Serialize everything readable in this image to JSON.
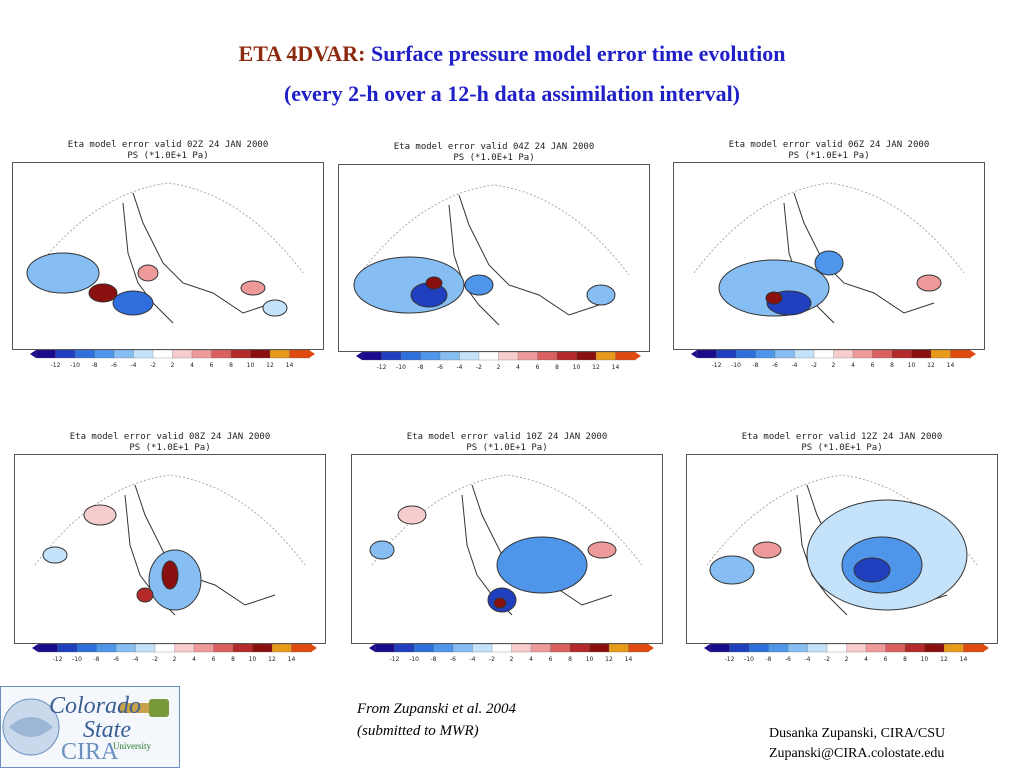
{
  "title": {
    "prefix": "ETA 4DVAR:",
    "rest": "Surface pressure model error time evolution",
    "line2": "(every 2-h over a 12-h data assimilation interval)"
  },
  "panels": [
    {
      "title": "Eta model error valid 02Z 24 JAN 2000",
      "subtitle": "PS (*1.0E+1 Pa)"
    },
    {
      "title": "Eta model error valid 04Z 24 JAN 2000",
      "subtitle": "PS (*1.0E+1 Pa)"
    },
    {
      "title": "Eta model error valid 06Z 24 JAN 2000",
      "subtitle": "PS (*1.0E+1 Pa)"
    },
    {
      "title": "Eta model error valid 08Z 24 JAN 2000",
      "subtitle": "PS (*1.0E+1 Pa)"
    },
    {
      "title": "Eta model error valid 10Z 24 JAN 2000",
      "subtitle": "PS (*1.0E+1 Pa)"
    },
    {
      "title": "Eta model error valid 12Z 24 JAN 2000",
      "subtitle": "PS (*1.0E+1 Pa)"
    }
  ],
  "colorbar": {
    "ticks": [
      "-12",
      "-10",
      "-8",
      "-6",
      "-4",
      "-2",
      "2",
      "4",
      "6",
      "8",
      "10",
      "12",
      "14"
    ],
    "colors": [
      "#1a0a8c",
      "#1f3fbf",
      "#2f6fdd",
      "#4f95ea",
      "#86bdf3",
      "#c4e2fa",
      "#ffffff",
      "#f6cccc",
      "#ee9a9a",
      "#db6060",
      "#b42a2a",
      "#8a0f0f",
      "#e89a1a",
      "#e04a10"
    ]
  },
  "citation": {
    "line1": "From Zupanski et al.  2004",
    "line2": "(submitted to MWR)"
  },
  "author": {
    "line1": "Dusanka Zupanski,  CIRA/CSU",
    "line2": "Zupanski@CIRA.colostate.edu"
  },
  "logo": {
    "line1": "Colorado",
    "line2": "State",
    "line2_sub": "University",
    "line3": "CIRA"
  }
}
